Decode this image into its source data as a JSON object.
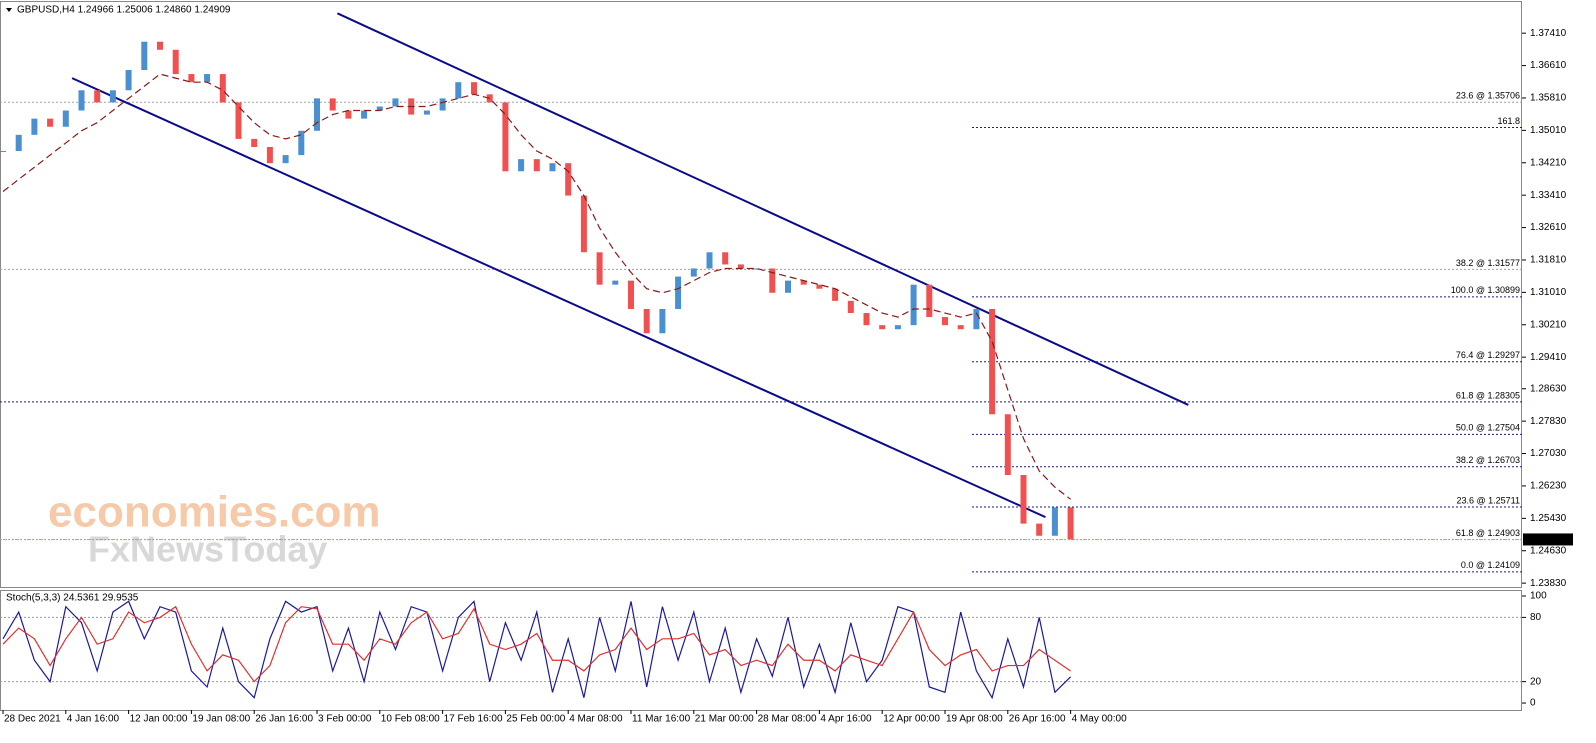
{
  "chart_data": [
    {
      "type": "candlestick",
      "title": "GBPUSD,H4  1.24966 1.25006 1.24860 1.24909",
      "ylim": [
        1.2371,
        1.3818
      ],
      "yticks": [
        {
          "value": 1.3741,
          "label": "1.37410"
        },
        {
          "value": 1.3661,
          "label": "1.36610"
        },
        {
          "value": 1.3581,
          "label": "1.35810"
        },
        {
          "value": 1.3501,
          "label": "1.35010"
        },
        {
          "value": 1.3421,
          "label": "1.34210"
        },
        {
          "value": 1.3341,
          "label": "1.33410"
        },
        {
          "value": 1.3261,
          "label": "1.32610"
        },
        {
          "value": 1.3181,
          "label": "1.31810"
        },
        {
          "value": 1.3101,
          "label": "1.31010"
        },
        {
          "value": 1.3021,
          "label": "1.30210"
        },
        {
          "value": 1.2941,
          "label": "1.29410"
        },
        {
          "value": 1.2863,
          "label": "1.28630"
        },
        {
          "value": 1.2783,
          "label": "1.27830"
        },
        {
          "value": 1.2703,
          "label": "1.27030"
        },
        {
          "value": 1.2623,
          "label": "1.26230"
        },
        {
          "value": 1.2543,
          "label": "1.25430"
        },
        {
          "value": 1.2463,
          "label": "1.24630"
        },
        {
          "value": 1.2383,
          "label": "1.23830"
        }
      ],
      "series": [
        {
          "color_up": "#4a8fd0",
          "color_down": "#f05050",
          "values": [
            1.345,
            1.349,
            1.353,
            1.351,
            1.355,
            1.36,
            1.357,
            1.36,
            1.365,
            1.372,
            1.37,
            1.364,
            1.362,
            1.364,
            1.357,
            1.348,
            1.346,
            1.342,
            1.344,
            1.35,
            1.358,
            1.355,
            1.353,
            1.355,
            1.356,
            1.358,
            1.354,
            1.355,
            1.358,
            1.362,
            1.359,
            1.357,
            1.34,
            1.343,
            1.34,
            1.342,
            1.334,
            1.32,
            1.312,
            1.313,
            1.306,
            1.3,
            1.306,
            1.314,
            1.316,
            1.32,
            1.317,
            1.316,
            1.316,
            1.31,
            1.313,
            1.312,
            1.311,
            1.308,
            1.305,
            1.302,
            1.301,
            1.302,
            1.312,
            1.304,
            1.302,
            1.301,
            1.306,
            1.28,
            1.265,
            1.253,
            1.25,
            1.257,
            1.24909
          ]
        },
        {
          "color": "#8b1a1a",
          "dashed": true,
          "values": [
            1.335,
            1.338,
            1.341,
            1.344,
            1.347,
            1.35,
            1.352,
            1.355,
            1.358,
            1.361,
            1.364,
            1.363,
            1.362,
            1.362,
            1.36,
            1.356,
            1.352,
            1.349,
            1.348,
            1.349,
            1.352,
            1.354,
            1.355,
            1.355,
            1.355,
            1.356,
            1.356,
            1.356,
            1.357,
            1.358,
            1.359,
            1.358,
            1.354,
            1.349,
            1.345,
            1.343,
            1.34,
            1.334,
            1.326,
            1.32,
            1.315,
            1.311,
            1.31,
            1.311,
            1.313,
            1.315,
            1.316,
            1.316,
            1.316,
            1.315,
            1.314,
            1.313,
            1.312,
            1.311,
            1.309,
            1.307,
            1.305,
            1.304,
            1.306,
            1.306,
            1.305,
            1.304,
            1.305,
            1.298,
            1.286,
            1.274,
            1.266,
            1.262,
            1.259
          ]
        }
      ],
      "last_price": {
        "value": 1.24909,
        "label": "1.24909"
      },
      "levels": [
        {
          "value": 1.35706,
          "label": "23.6 @ 1.35706",
          "color": "#a0a0a0",
          "full": true
        },
        {
          "value": 1.3508,
          "label": "161.8",
          "color": "#1a1a9a",
          "full": false
        },
        {
          "value": 1.31577,
          "label": "38.2 @ 1.31577",
          "color": "#a0a0a0",
          "full": true
        },
        {
          "value": 1.30899,
          "label": "100.0 @ 1.30899",
          "color": "#1a1a9a",
          "full": false
        },
        {
          "value": 1.29297,
          "label": "76.4 @ 1.29297",
          "color": "#1a1a9a",
          "full": false
        },
        {
          "value": 1.28305,
          "label": "61.8 @ 1.28305",
          "color": "#1a1a9a",
          "full": true
        },
        {
          "value": 1.27504,
          "label": "50.0 @ 1.27504",
          "color": "#1a1a9a",
          "full": false
        },
        {
          "value": 1.26703,
          "label": "38.2 @ 1.26703",
          "color": "#1a1a9a",
          "full": false
        },
        {
          "value": 1.25711,
          "label": "23.6 @ 1.25711",
          "color": "#1a1a9a",
          "full": false
        },
        {
          "value": 1.24903,
          "label": "61.8 @ 1.24903",
          "color": "#a0a0a0",
          "full": true
        },
        {
          "value": 1.24109,
          "label": "0.0 @ 1.24109",
          "color": "#1a1a9a",
          "full": false
        }
      ],
      "trendlines": [
        {
          "color": "#0a0a8a",
          "x": [
            21.3,
            75.5
          ],
          "y": [
            1.379,
            1.2823
          ]
        },
        {
          "color": "#0a0a8a",
          "x": [
            4.4,
            66.4
          ],
          "y": [
            1.363,
            1.2546
          ]
        }
      ],
      "watermark": [
        "economies.com",
        "FxNewsToday"
      ]
    },
    {
      "type": "line",
      "title": "Stoch(5,3,3) 24.5361 29.9535",
      "categories": [
        "28 Dec 2021",
        null,
        null,
        null,
        "4 Jan 16:00",
        null,
        null,
        null,
        "12 Jan 00:00",
        null,
        null,
        null,
        "19 Jan 08:00",
        null,
        null,
        null,
        "26 Jan 16:00",
        null,
        null,
        null,
        "3 Feb 00:00",
        null,
        null,
        null,
        "10 Feb 08:00",
        null,
        null,
        null,
        "17 Feb 16:00",
        null,
        null,
        null,
        "25 Feb 00:00",
        null,
        null,
        null,
        "4 Mar 08:00",
        null,
        null,
        null,
        "11 Mar 16:00",
        null,
        null,
        null,
        "21 Mar 00:00",
        null,
        null,
        null,
        "28 Mar 08:00",
        null,
        null,
        null,
        "4 Apr 16:00",
        null,
        null,
        null,
        "12 Apr 00:00",
        null,
        null,
        null,
        "19 Apr 08:00",
        null,
        null,
        null,
        "26 Apr 16:00",
        null,
        null,
        null,
        "4 May 00:00"
      ],
      "ylim": [
        -6.5,
        105.6
      ],
      "yticks": [
        100,
        80,
        20,
        0
      ],
      "levels": [
        80,
        20
      ],
      "series": [
        {
          "color": "#1a1aa0",
          "values": [
            60,
            85,
            40,
            20,
            90,
            75,
            30,
            85,
            95,
            60,
            90,
            85,
            30,
            15,
            70,
            20,
            5,
            60,
            95,
            85,
            90,
            30,
            70,
            20,
            85,
            50,
            90,
            85,
            30,
            80,
            95,
            20,
            75,
            40,
            85,
            10,
            60,
            5,
            80,
            30,
            95,
            15,
            90,
            40,
            85,
            20,
            70,
            10,
            60,
            25,
            80,
            15,
            55,
            10,
            75,
            20,
            40,
            90,
            85,
            15,
            10,
            85,
            30,
            5,
            60,
            15,
            80,
            10,
            24.5361
          ]
        },
        {
          "color": "#e03030",
          "values": [
            55,
            70,
            60,
            35,
            60,
            80,
            55,
            60,
            85,
            75,
            80,
            90,
            55,
            30,
            45,
            40,
            20,
            35,
            75,
            90,
            88,
            55,
            55,
            40,
            60,
            55,
            75,
            85,
            60,
            65,
            88,
            55,
            50,
            55,
            65,
            40,
            40,
            30,
            45,
            50,
            70,
            50,
            60,
            60,
            65,
            45,
            50,
            35,
            40,
            35,
            55,
            40,
            40,
            30,
            45,
            40,
            35,
            60,
            85,
            50,
            35,
            45,
            50,
            30,
            35,
            35,
            50,
            40,
            29.9535
          ]
        }
      ]
    }
  ]
}
